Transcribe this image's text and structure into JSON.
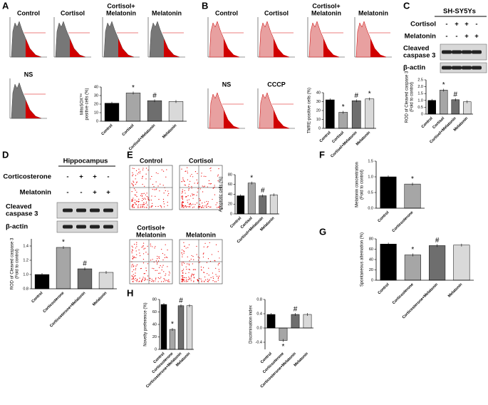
{
  "figure": {
    "A": {
      "letter": "A",
      "plots": [
        [
          "Control"
        ],
        [
          "Cortisol"
        ],
        [
          "Cortisol+",
          "Melatonin"
        ],
        [
          "Melatonin"
        ],
        [
          "NS"
        ]
      ]
    },
    "B": {
      "letter": "B",
      "plots": [
        [
          "Control"
        ],
        [
          "Cortisol"
        ],
        [
          "Cortisol+",
          "Melatonin"
        ],
        [
          "Melatonin"
        ],
        [
          "NS"
        ],
        [
          "CCCP"
        ]
      ]
    },
    "C": {
      "letter": "C",
      "header": "SH-SY5Ys",
      "rows": [
        {
          "name": "Cortisol",
          "signs": [
            "-",
            "+",
            "+",
            "-"
          ]
        },
        {
          "name": "Melatonin",
          "signs": [
            "-",
            "-",
            "+",
            "+"
          ]
        }
      ],
      "bands": [
        [
          "Cleaved",
          "caspase 3"
        ],
        [
          "β-actin"
        ]
      ]
    },
    "D": {
      "letter": "D",
      "header": "Hippocampus",
      "rows": [
        {
          "name": "Corticosterone",
          "signs": [
            "-",
            "+",
            "+",
            "-"
          ]
        },
        {
          "name": "Melatonin",
          "signs": [
            "-",
            "-",
            "+",
            "+"
          ]
        }
      ],
      "bands": [
        [
          "Cleaved",
          "caspase 3"
        ],
        [
          "β-actin"
        ]
      ]
    },
    "E": {
      "letter": "E",
      "plots": [
        [
          "Control"
        ],
        [
          "Cortisol"
        ],
        [
          "Cortisol+",
          "Melatonin"
        ],
        [
          "Melatonin"
        ]
      ]
    },
    "F": {
      "letter": "F"
    },
    "G": {
      "letter": "G"
    },
    "H": {
      "letter": "H"
    }
  },
  "chart_data": [
    {
      "type": "bar",
      "ylabel": [
        "MitoSOX™",
        "positive cells (%)"
      ],
      "categories": [
        "Control",
        "Cortisol",
        "Cortisol+Melatonin",
        "Melatonin"
      ],
      "values": [
        21,
        33,
        24,
        23
      ],
      "annotations": [
        null,
        "*",
        "#",
        null
      ],
      "colors": [
        "#000000",
        "#a6a6a6",
        "#6e6e6e",
        "#d9d9d9"
      ],
      "ylim": [
        0,
        40
      ],
      "yticks": [
        0,
        10,
        20,
        30,
        40
      ]
    },
    {
      "type": "bar",
      "ylabel": [
        "TMRE-positive cells (%)"
      ],
      "categories": [
        "Control",
        "Cortisol",
        "Cortisol+Melatonin",
        "Melatonin"
      ],
      "values": [
        32,
        18,
        31,
        33
      ],
      "annotations": [
        null,
        "*",
        "#",
        "*"
      ],
      "colors": [
        "#000000",
        "#a6a6a6",
        "#6e6e6e",
        "#d9d9d9"
      ],
      "ylim": [
        0,
        40
      ],
      "yticks": [
        0,
        10,
        20,
        30,
        40
      ]
    },
    {
      "type": "bar",
      "ylabel": [
        "ROD of Cleaved caspase 3",
        "(Fold to control)"
      ],
      "categories": [
        "Control",
        "Cortisol",
        "Cortisol+Melatonin",
        "Melatonin"
      ],
      "values": [
        1.0,
        1.75,
        1.05,
        0.9
      ],
      "annotations": [
        null,
        "*",
        "#",
        null
      ],
      "colors": [
        "#000000",
        "#a6a6a6",
        "#6e6e6e",
        "#d9d9d9"
      ],
      "ylim": [
        0,
        2.5
      ],
      "yticks": [
        0,
        0.5,
        {
          "value": 1,
          "label": "1.0"
        },
        1.5,
        {
          "value": 2,
          "label": "2.0"
        },
        2.5
      ]
    },
    {
      "type": "bar",
      "ylabel": [
        "ROD of Cleaved caspase 3",
        "(Fold to control)"
      ],
      "categories": [
        "Control",
        "Corticosterone",
        "Corticosterone+Melatonin",
        "Melatonin"
      ],
      "values": [
        1.0,
        1.38,
        1.08,
        1.03
      ],
      "annotations": [
        null,
        "*",
        "#",
        null
      ],
      "colors": [
        "#000000",
        "#a6a6a6",
        "#6e6e6e",
        "#d9d9d9"
      ],
      "ylim": [
        0.8,
        1.5
      ],
      "yticks": [
        0.8,
        {
          "value": 1,
          "label": "1.0"
        },
        1.2,
        1.4
      ]
    },
    {
      "type": "bar",
      "ylabel": [
        "Apoptotic cells (%)"
      ],
      "categories": [
        "Control",
        "Cortisol",
        "Cortisol+Melatonin",
        "Melatonin"
      ],
      "values": [
        37,
        63,
        37,
        39
      ],
      "annotations": [
        null,
        "*",
        "#",
        null
      ],
      "colors": [
        "#000000",
        "#a6a6a6",
        "#6e6e6e",
        "#d9d9d9"
      ],
      "ylim": [
        0,
        80
      ],
      "yticks": [
        0,
        20,
        40,
        60,
        80
      ]
    },
    {
      "type": "bar",
      "ylabel": [
        "Melatonin concentration",
        "(Fold to control)"
      ],
      "categories": [
        "Control",
        "Corticosterone"
      ],
      "values": [
        1.0,
        0.77
      ],
      "annotations": [
        null,
        "*"
      ],
      "colors": [
        "#000000",
        "#a6a6a6"
      ],
      "ylim": [
        0,
        1.5
      ],
      "yticks": [
        {
          "value": 0,
          "label": "0.0"
        },
        0.5,
        {
          "value": 1,
          "label": "1.0"
        },
        1.5
      ]
    },
    {
      "type": "bar",
      "ylabel": [
        "Spontaneous alternation (%)"
      ],
      "categories": [
        "Control",
        "Corticosterone",
        "Corticosterone+Melatonin",
        "Melatonin"
      ],
      "values": [
        70,
        49,
        67,
        68
      ],
      "annotations": [
        null,
        "*",
        "#",
        null
      ],
      "colors": [
        "#000000",
        "#a6a6a6",
        "#6e6e6e",
        "#d9d9d9"
      ],
      "ylim": [
        0,
        80
      ],
      "yticks": [
        0,
        20,
        40,
        60,
        80
      ]
    },
    {
      "type": "bar",
      "ylabel": [
        "Novelty preference (%)"
      ],
      "categories": [
        "Control",
        "Corticosterone",
        "Corticosterone+Melatonin",
        "Melatonin"
      ],
      "values": [
        72,
        32,
        70,
        70
      ],
      "annotations": [
        null,
        "*",
        "#",
        null
      ],
      "colors": [
        "#000000",
        "#a6a6a6",
        "#6e6e6e",
        "#d9d9d9"
      ],
      "ylim": [
        0,
        80
      ],
      "yticks": [
        0,
        20,
        40,
        60,
        80
      ]
    },
    {
      "type": "bar",
      "ylabel": [
        "Discrimination index"
      ],
      "categories": [
        "Control",
        "Corticosterone",
        "Corticosterone+Melatonin",
        "Melatonin"
      ],
      "values": [
        0.38,
        -0.35,
        0.38,
        0.38
      ],
      "annotations": [
        null,
        "*",
        "#",
        null
      ],
      "colors": [
        "#000000",
        "#a6a6a6",
        "#6e6e6e",
        "#d9d9d9"
      ],
      "ylim": [
        -0.6,
        0.8
      ],
      "yticks": [
        -0.4,
        {
          "value": 0,
          "label": "0.0"
        },
        0.4,
        0.8
      ]
    }
  ]
}
